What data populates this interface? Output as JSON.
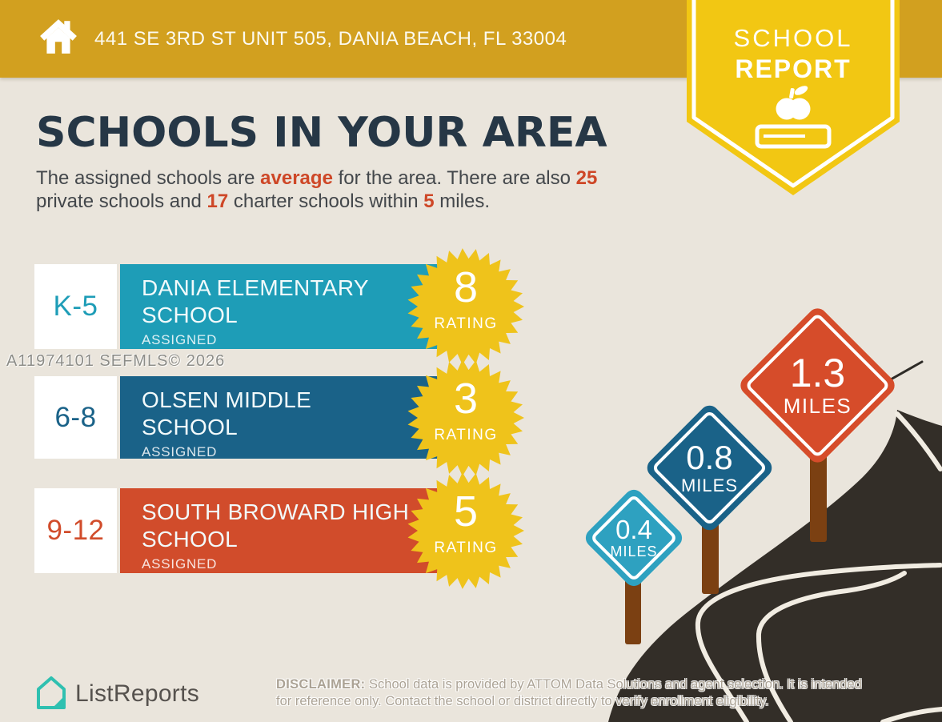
{
  "header": {
    "address": "441 SE 3RD ST UNIT 505, DANIA BEACH, FL 33004",
    "badge_line1": "SCHOOL",
    "badge_line2": "REPORT"
  },
  "intro": {
    "title": "SCHOOLS IN YOUR AREA",
    "subtitle_segments": [
      {
        "text": "The assigned schools are "
      },
      {
        "text": "average",
        "highlight": true
      },
      {
        "text": " for the area. There are also "
      },
      {
        "text": "25",
        "highlight": true
      },
      {
        "text": " private schools and "
      },
      {
        "text": "17",
        "highlight": true
      },
      {
        "text": " charter schools within "
      },
      {
        "text": "5",
        "highlight": true
      },
      {
        "text": " miles."
      }
    ]
  },
  "schools": [
    {
      "grades": "K-5",
      "name": "DANIA ELEMENTARY SCHOOL",
      "status": "ASSIGNED",
      "rating": "8",
      "rating_label": "RATING",
      "color": "#1E9DB7"
    },
    {
      "grades": "6-8",
      "name": "OLSEN MIDDLE SCHOOL",
      "status": "ASSIGNED",
      "rating": "3",
      "rating_label": "RATING",
      "color": "#1A6288"
    },
    {
      "grades": "9-12",
      "name": "SOUTH BROWARD HIGH SCHOOL",
      "status": "ASSIGNED",
      "rating": "5",
      "rating_label": "RATING",
      "color": "#D14C2B"
    }
  ],
  "distance_signs": [
    {
      "distance": "0.4",
      "unit": "MILES",
      "color": "#2EA1C0"
    },
    {
      "distance": "0.8",
      "unit": "MILES",
      "color": "#1A6288"
    },
    {
      "distance": "1.3",
      "unit": "MILES",
      "color": "#D64C2A"
    }
  ],
  "watermark": "A11974101  SEFMLS© 2026",
  "footer": {
    "brand": "ListReports",
    "disclaimer_label": "DISCLAIMER:",
    "disclaimer_line1": " School data is provided by ATTOM Data Solutions and agent selection. It is intended",
    "disclaimer_line2": "for reference only. Contact the school or district directly to verify enrollment eligibility."
  },
  "colors": {
    "header_gold": "#D2A01F",
    "badge_yellow": "#F2C713",
    "background_beige": "#EAE5DC",
    "heading_navy": "#263746",
    "accent_red": "#CE4727",
    "starburst_yellow": "#EFC31B",
    "road_dark": "#332E28",
    "post_brown": "#7B4012",
    "brand_teal": "#2FC0B0"
  }
}
